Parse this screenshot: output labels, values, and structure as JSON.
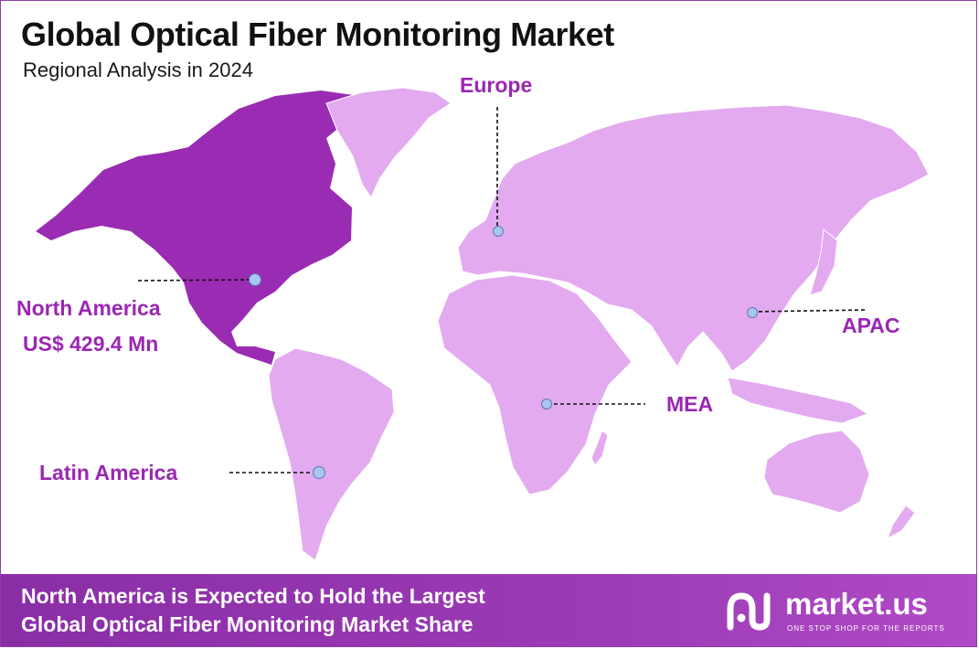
{
  "title": "Global Optical Fiber Monitoring Market",
  "subtitle": "Regional Analysis in 2024",
  "colors": {
    "highlight_region": "#9a2bb3",
    "other_regions": "#e3aaf0",
    "label_text": "#9b27b3",
    "marker": "#a9c6ef",
    "footer_bg": "#922fab"
  },
  "regions": [
    {
      "id": "north-america",
      "name": "North America",
      "value": "US$ 429.4 Mn",
      "highlighted": true
    },
    {
      "id": "europe",
      "name": "Europe",
      "highlighted": false
    },
    {
      "id": "apac",
      "name": "APAC",
      "highlighted": false
    },
    {
      "id": "mea",
      "name": "MEA",
      "highlighted": false
    },
    {
      "id": "latin-america",
      "name": "Latin America",
      "highlighted": false
    }
  ],
  "footer": {
    "line1": "North America is Expected to Hold the Largest",
    "line2": "Global Optical Fiber Monitoring Market Share"
  },
  "brand": {
    "name": "market.us",
    "tagline": "ONE STOP SHOP FOR THE REPORTS",
    "logo_icon": "market-us-logo-icon"
  }
}
